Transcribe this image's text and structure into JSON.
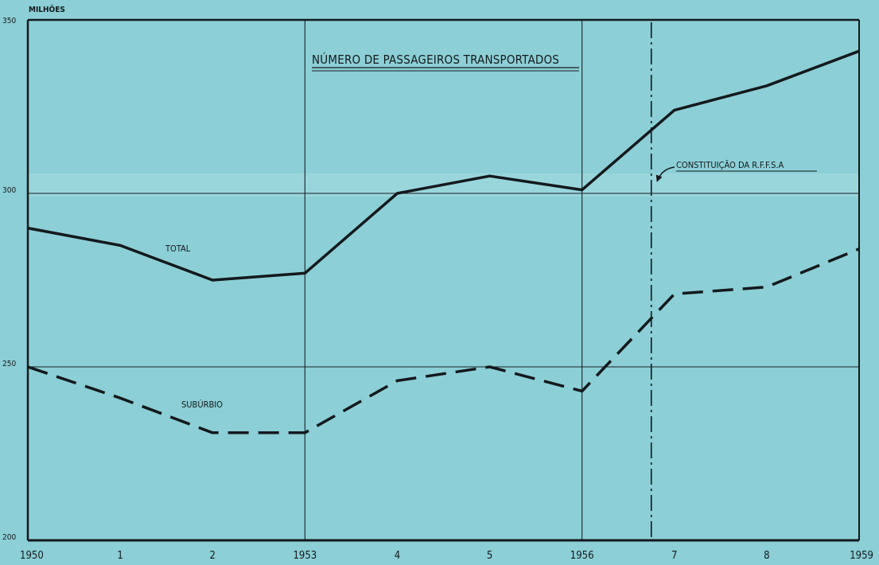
{
  "chart_data": {
    "type": "line",
    "title": "NÚMERO DE PASSAGEIROS TRANSPORTADOS",
    "ylabel": "MILHÕES",
    "xlabel": "",
    "x": [
      1950,
      1951,
      1952,
      1953,
      1954,
      1955,
      1956,
      1957,
      1958,
      1959
    ],
    "x_tick_labels": [
      "1950",
      "1",
      "2",
      "1953",
      "4",
      "5",
      "1956",
      "7",
      "8",
      "1959"
    ],
    "y_ticks": [
      200,
      250,
      300,
      350
    ],
    "y_tick_labels": [
      "200",
      "250",
      "300",
      "350"
    ],
    "ylim": [
      200,
      350
    ],
    "grid_years": [
      1953,
      1956
    ],
    "grid_values": [
      250,
      300
    ],
    "series": [
      {
        "name": "TOTAL",
        "style": "solid",
        "values": [
          290,
          285,
          275,
          277,
          300,
          305,
          301,
          324,
          331,
          341
        ]
      },
      {
        "name": "SUBÚRBIO",
        "style": "dashed",
        "values": [
          250,
          241,
          231,
          231,
          246,
          250,
          243,
          271,
          273,
          284
        ]
      }
    ],
    "annotation": {
      "text": "CONSTITUIÇÃO DA R.F.F.S.A",
      "year": 1956.75
    },
    "colors": {
      "background": "#8ccfd6",
      "ink": "#14191c"
    }
  }
}
